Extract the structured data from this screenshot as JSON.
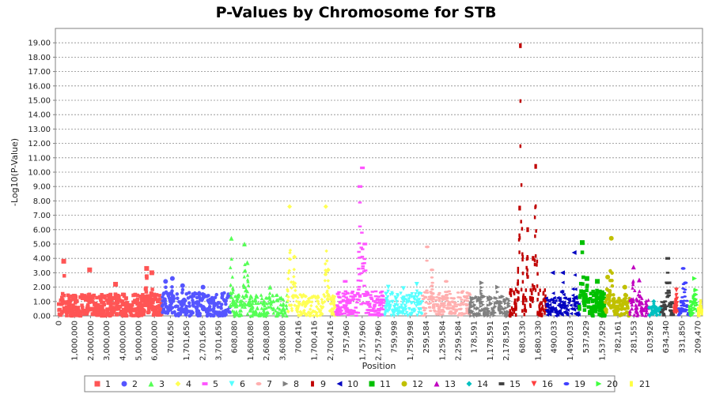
{
  "chart_data": {
    "type": "scatter",
    "title": "P-Values by Chromosome for STB",
    "xlabel": "Position",
    "ylabel": "-Log10(P-Value)",
    "ylim": [
      0,
      20
    ],
    "yticks": [
      "0.00",
      "1.00",
      "2.00",
      "3.00",
      "4.00",
      "5.00",
      "6.00",
      "7.00",
      "8.00",
      "9.00",
      "10.00",
      "11.00",
      "12.00",
      "13.00",
      "14.00",
      "15.00",
      "16.00",
      "17.00",
      "18.00",
      "19.00"
    ],
    "grid": "horizontal-dashed",
    "legend_position": "bottom",
    "xticks": [
      "0",
      "1,000,000",
      "2,000,000",
      "3,000,000",
      "4,000,000",
      "5,000,000",
      "6,000,000",
      "701,650",
      "1,701,650",
      "2,701,650",
      "3,701,650",
      "608,080",
      "1,608,080",
      "2,608,080",
      "3,608,080",
      "700,416",
      "1,700,416",
      "2,700,416",
      "757,960",
      "1,757,960",
      "2,757,960",
      "759,998",
      "1,759,998",
      "259,584",
      "1,259,584",
      "2,259,584",
      "178,591",
      "1,178,591",
      "2,178,591",
      "680,330",
      "1,680,330",
      "490,033",
      "1,490,033",
      "537,929",
      "1,537,929",
      "782,161",
      "281,553",
      "103,926",
      "634,340",
      "331,850",
      "209,470"
    ],
    "series": [
      {
        "name": "1",
        "color": "#ff5555",
        "marker": "square",
        "base": 1.3,
        "peaks": [
          [
            0.05,
            3.8
          ],
          [
            0.3,
            3.2
          ],
          [
            0.55,
            2.2
          ],
          [
            0.85,
            3.3
          ],
          [
            0.9,
            3.0
          ]
        ]
      },
      {
        "name": "2",
        "color": "#5555ff",
        "marker": "circle",
        "base": 1.4,
        "peaks": [
          [
            0.05,
            2.4
          ],
          [
            0.15,
            2.6
          ],
          [
            0.3,
            2.1
          ],
          [
            0.6,
            2.0
          ]
        ]
      },
      {
        "name": "3",
        "color": "#55ff55",
        "marker": "triangle-up",
        "base": 1.3,
        "peaks": [
          [
            0.02,
            5.4
          ],
          [
            0.25,
            5.0
          ],
          [
            0.3,
            3.7
          ],
          [
            0.7,
            2.0
          ]
        ]
      },
      {
        "name": "4",
        "color": "#ffff55",
        "marker": "diamond",
        "base": 1.3,
        "peaks": [
          [
            0.05,
            7.6
          ],
          [
            0.15,
            4.1
          ],
          [
            0.8,
            7.6
          ],
          [
            0.85,
            3.2
          ]
        ]
      },
      {
        "name": "5",
        "color": "#ff55ff",
        "marker": "rect-h",
        "base": 1.5,
        "peaks": [
          [
            0.2,
            2.4
          ],
          [
            0.55,
            10.3
          ],
          [
            0.5,
            9.0
          ],
          [
            0.6,
            5.0
          ]
        ]
      },
      {
        "name": "6",
        "color": "#55ffff",
        "marker": "triangle-down",
        "base": 1.4,
        "peaks": [
          [
            0.1,
            2.0
          ],
          [
            0.5,
            1.9
          ],
          [
            0.85,
            2.2
          ]
        ]
      },
      {
        "name": "7",
        "color": "#ffafaf",
        "marker": "ellipse",
        "base": 1.5,
        "peaks": [
          [
            0.1,
            4.8
          ],
          [
            0.2,
            3.2
          ],
          [
            0.5,
            2.4
          ]
        ]
      },
      {
        "name": "8",
        "color": "#808080",
        "marker": "triangle-right",
        "base": 1.2,
        "peaks": [
          [
            0.3,
            2.3
          ],
          [
            0.7,
            2.0
          ]
        ]
      },
      {
        "name": "9",
        "color": "#c00000",
        "marker": "rect-v",
        "base": 1.6,
        "peaks": [
          [
            0.3,
            18.8
          ],
          [
            0.28,
            7.5
          ],
          [
            0.5,
            6.0
          ],
          [
            0.72,
            10.4
          ],
          [
            0.65,
            4.0
          ]
        ]
      },
      {
        "name": "10",
        "color": "#0000c0",
        "marker": "triangle-left",
        "base": 1.1,
        "peaks": [
          [
            0.2,
            3.0
          ],
          [
            0.5,
            3.0
          ],
          [
            0.85,
            4.4
          ]
        ]
      },
      {
        "name": "11",
        "color": "#00c000",
        "marker": "square",
        "base": 1.5,
        "peaks": [
          [
            0.12,
            5.1
          ],
          [
            0.3,
            2.6
          ],
          [
            0.7,
            2.4
          ]
        ]
      },
      {
        "name": "12",
        "color": "#c0c000",
        "marker": "circle",
        "base": 1.3,
        "peaks": [
          [
            0.1,
            2.7
          ],
          [
            0.25,
            5.4
          ],
          [
            0.8,
            2.0
          ]
        ]
      },
      {
        "name": "13",
        "color": "#c000c0",
        "marker": "triangle-up",
        "base": 1.1,
        "peaks": [
          [
            0.2,
            3.4
          ],
          [
            0.5,
            2.5
          ]
        ]
      },
      {
        "name": "14",
        "color": "#00c0c0",
        "marker": "diamond",
        "base": 0.6,
        "peaks": [
          [
            0.4,
            1.0
          ]
        ]
      },
      {
        "name": "15",
        "color": "#404040",
        "marker": "rect-h",
        "base": 0.9,
        "peaks": [
          [
            0.5,
            4.0
          ],
          [
            0.6,
            2.3
          ]
        ]
      },
      {
        "name": "16",
        "color": "#ff4040",
        "marker": "triangle-down",
        "base": 0.6,
        "peaks": [
          [
            0.5,
            1.8
          ]
        ]
      },
      {
        "name": "19",
        "color": "#4040ff",
        "marker": "ellipse",
        "base": 0.5,
        "peaks": [
          [
            0.4,
            3.3
          ],
          [
            0.6,
            2.3
          ]
        ]
      },
      {
        "name": "20",
        "color": "#40ff40",
        "marker": "triangle-right",
        "base": 1.0,
        "peaks": [
          [
            0.6,
            2.6
          ],
          [
            0.8,
            1.8
          ]
        ]
      },
      {
        "name": "21",
        "color": "#ffff40",
        "marker": "rect-v",
        "base": 0.6,
        "peaks": [
          [
            0.6,
            1.0
          ]
        ]
      }
    ],
    "legend": [
      {
        "label": "1",
        "color": "#ff5555",
        "marker": "square"
      },
      {
        "label": "2",
        "color": "#5555ff",
        "marker": "circle"
      },
      {
        "label": "3",
        "color": "#55ff55",
        "marker": "triangle-up"
      },
      {
        "label": "4",
        "color": "#ffff55",
        "marker": "diamond"
      },
      {
        "label": "5",
        "color": "#ff55ff",
        "marker": "rect-h"
      },
      {
        "label": "6",
        "color": "#55ffff",
        "marker": "triangle-down"
      },
      {
        "label": "7",
        "color": "#ffafaf",
        "marker": "ellipse"
      },
      {
        "label": "8",
        "color": "#808080",
        "marker": "triangle-right"
      },
      {
        "label": "9",
        "color": "#c00000",
        "marker": "rect-v"
      },
      {
        "label": "10",
        "color": "#0000c0",
        "marker": "triangle-left"
      },
      {
        "label": "11",
        "color": "#00c000",
        "marker": "square"
      },
      {
        "label": "12",
        "color": "#c0c000",
        "marker": "circle"
      },
      {
        "label": "13",
        "color": "#c000c0",
        "marker": "triangle-up"
      },
      {
        "label": "14",
        "color": "#00c0c0",
        "marker": "diamond"
      },
      {
        "label": "15",
        "color": "#404040",
        "marker": "rect-h"
      },
      {
        "label": "16",
        "color": "#ff4040",
        "marker": "triangle-down"
      },
      {
        "label": "19",
        "color": "#4040ff",
        "marker": "ellipse"
      },
      {
        "label": "20",
        "color": "#40ff40",
        "marker": "triangle-right"
      },
      {
        "label": "21",
        "color": "#ffff40",
        "marker": "rect-v"
      }
    ]
  }
}
